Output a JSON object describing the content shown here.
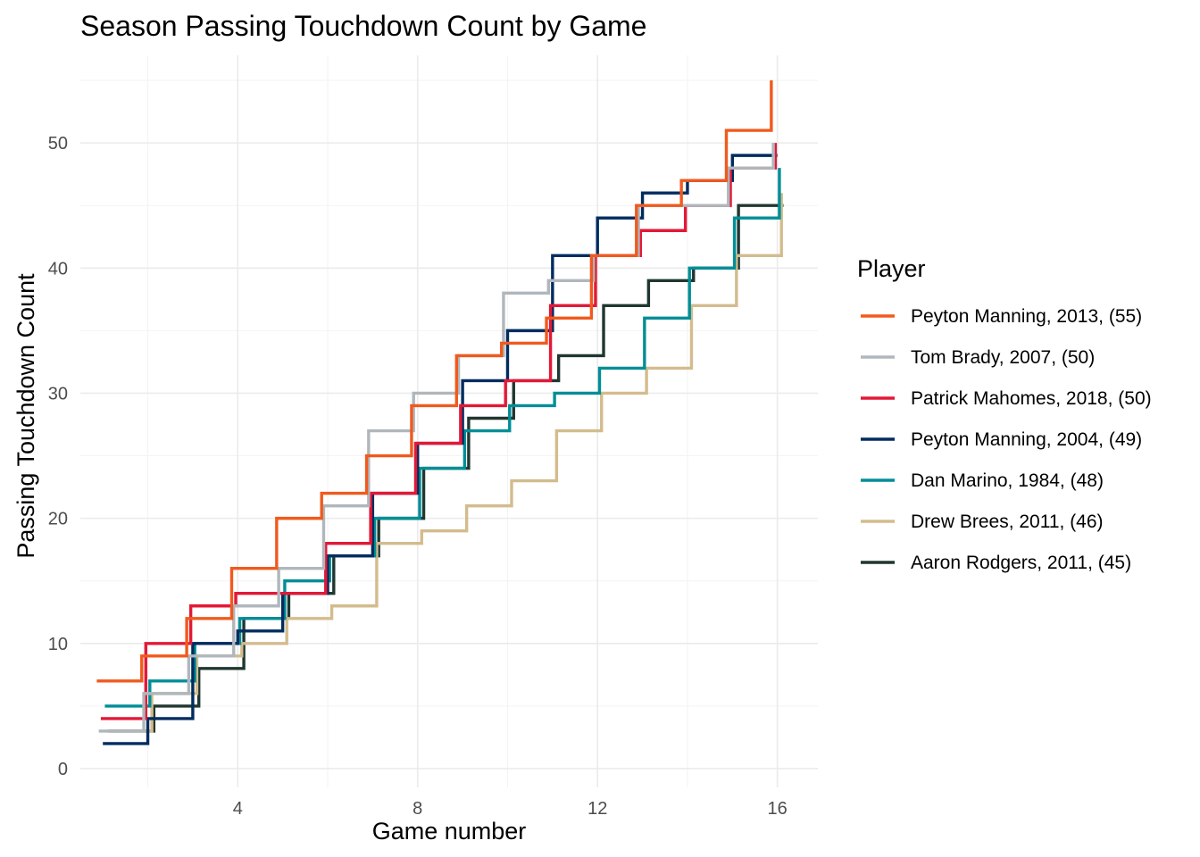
{
  "chart_data": {
    "type": "line",
    "step": true,
    "title": "Season Passing Touchdown Count by Game",
    "xlabel": "Game number",
    "ylabel": "Passing Touchdown Count",
    "xlim": [
      0.5,
      16.9
    ],
    "ylim": [
      -1.5,
      57
    ],
    "xticks": [
      4,
      8,
      12,
      16
    ],
    "yticks": [
      0,
      10,
      20,
      30,
      40,
      50
    ],
    "grid": true,
    "legend": {
      "title": "Player",
      "position": "right"
    },
    "series": [
      {
        "name": "Peyton Manning, 2013, (55)",
        "color": "#f05a1e",
        "x": [
          1,
          2,
          3,
          4,
          5,
          6,
          7,
          8,
          9,
          10,
          11,
          12,
          13,
          14,
          15,
          16
        ],
        "y": [
          7,
          9,
          12,
          16,
          20,
          22,
          25,
          29,
          33,
          34,
          36,
          41,
          45,
          47,
          51,
          55
        ]
      },
      {
        "name": "Tom Brady, 2007, (50)",
        "color": "#b0b7bc",
        "x": [
          1,
          2,
          3,
          4,
          5,
          6,
          7,
          8,
          9,
          10,
          11,
          12,
          13,
          14,
          15,
          16
        ],
        "y": [
          3,
          6,
          9,
          13,
          16,
          21,
          27,
          30,
          33,
          38,
          39,
          41,
          45,
          45,
          48,
          50
        ]
      },
      {
        "name": "Patrick Mahomes, 2018, (50)",
        "color": "#e31837",
        "x": [
          1,
          2,
          3,
          4,
          5,
          6,
          7,
          8,
          9,
          10,
          11,
          12,
          13,
          14,
          15,
          16
        ],
        "y": [
          4,
          10,
          13,
          14,
          14,
          18,
          22,
          26,
          29,
          31,
          37,
          41,
          43,
          45,
          48,
          50
        ]
      },
      {
        "name": "Peyton Manning, 2004, (49)",
        "color": "#002c5f",
        "x": [
          1,
          2,
          3,
          4,
          5,
          6,
          7,
          8,
          9,
          10,
          11,
          12,
          13,
          14,
          15,
          16
        ],
        "y": [
          2,
          4,
          10,
          11,
          14,
          17,
          22,
          26,
          31,
          35,
          41,
          44,
          46,
          47,
          49,
          49
        ]
      },
      {
        "name": "Dan Marino, 1984, (48)",
        "color": "#008e97",
        "x": [
          1,
          2,
          3,
          4,
          5,
          6,
          7,
          8,
          9,
          10,
          11,
          12,
          13,
          14,
          15,
          16
        ],
        "y": [
          5,
          7,
          10,
          12,
          15,
          17,
          20,
          24,
          27,
          29,
          30,
          32,
          36,
          40,
          44,
          48
        ]
      },
      {
        "name": "Drew Brees, 2011, (46)",
        "color": "#d3bc8d",
        "x": [
          1,
          2,
          3,
          4,
          5,
          6,
          7,
          8,
          9,
          10,
          11,
          12,
          13,
          14,
          15,
          16
        ],
        "y": [
          3,
          6,
          9,
          10,
          12,
          13,
          18,
          19,
          21,
          23,
          27,
          30,
          32,
          37,
          41,
          46
        ]
      },
      {
        "name": "Aaron Rodgers, 2011, (45)",
        "color": "#203731",
        "x": [
          1,
          2,
          3,
          4,
          5,
          6,
          7,
          8,
          9,
          10,
          11,
          12,
          13,
          14,
          15,
          16
        ],
        "y": [
          3,
          5,
          8,
          12,
          14,
          17,
          20,
          24,
          28,
          31,
          33,
          37,
          39,
          40,
          45,
          45
        ]
      }
    ]
  }
}
